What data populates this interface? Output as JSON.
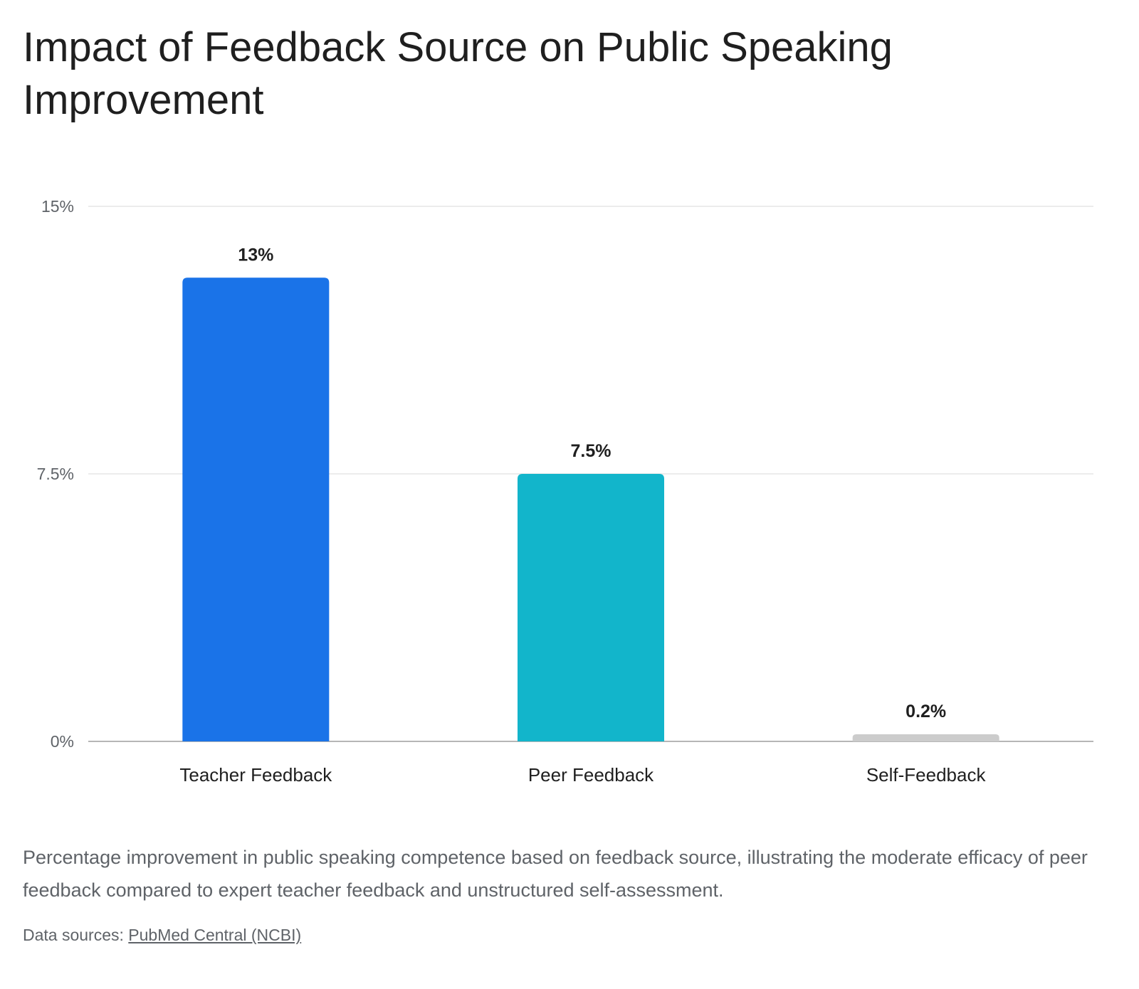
{
  "chart_data": {
    "type": "bar",
    "title": "Impact of Feedback Source on Public Speaking Improvement",
    "categories": [
      "Teacher Feedback",
      "Peer Feedback",
      "Self-Feedback"
    ],
    "values": [
      13,
      7.5,
      0.2
    ],
    "value_labels": [
      "13%",
      "7.5%",
      "0.2%"
    ],
    "bar_colors": [
      "#1a73e8",
      "#12b5cb",
      "#cccccc"
    ],
    "yticks": [
      {
        "value": 0,
        "label": "0%"
      },
      {
        "value": 7.5,
        "label": "7.5%"
      },
      {
        "value": 15,
        "label": "15%"
      }
    ],
    "ylim": [
      0,
      15
    ],
    "grid": true,
    "legend": "none",
    "caption": "Percentage improvement in public speaking competence based on feedback source, illustrating the moderate efficacy of peer feedback compared to expert teacher feedback and unstructured self-assessment.",
    "sources_prefix": "Data sources: ",
    "sources_link": "PubMed Central (NCBI)"
  }
}
